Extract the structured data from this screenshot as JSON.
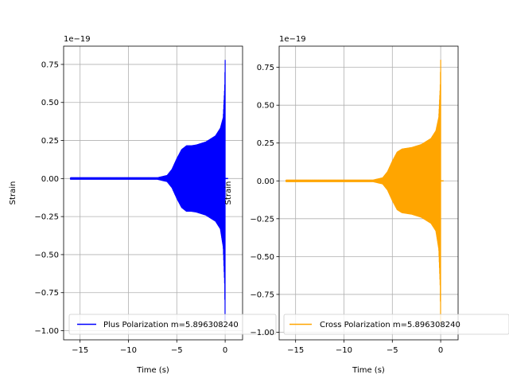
{
  "chart_data": [
    {
      "type": "line",
      "xlabel": "Time (s)",
      "ylabel": "Strain",
      "offset_text": "1e−19",
      "y_scale_exponent": -19,
      "xlim": [
        -16.7,
        1.8
      ],
      "ylim": [
        -1.06,
        0.87
      ],
      "xticks": [
        -15,
        -10,
        -5,
        0
      ],
      "xtick_labels": [
        "−15",
        "−10",
        "−5",
        "0"
      ],
      "yticks": [
        -1.0,
        -0.75,
        -0.5,
        -0.25,
        0.0,
        0.25,
        0.5,
        0.75
      ],
      "ytick_labels": [
        "−1.00",
        "−0.75",
        "−0.50",
        "−0.25",
        "0.00",
        "0.25",
        "0.50",
        "0.75"
      ],
      "grid": true,
      "legend_position": "lower-left",
      "series": [
        {
          "name": "Plus Polarization m=5.896308240",
          "color": "#0000ff",
          "envelope": {
            "x": [
              -16.0,
              -7.0,
              -6.0,
              -5.5,
              -5.0,
              -4.5,
              -4.0,
              -3.5,
              -3.0,
              -2.0,
              -1.0,
              -0.5,
              -0.2,
              -0.05,
              0.0
            ],
            "upper": [
              0.005,
              0.005,
              0.02,
              0.06,
              0.13,
              0.19,
              0.215,
              0.215,
              0.22,
              0.24,
              0.28,
              0.33,
              0.4,
              0.6,
              0.78
            ],
            "lower": [
              -0.005,
              -0.005,
              -0.02,
              -0.06,
              -0.13,
              -0.19,
              -0.215,
              -0.215,
              -0.22,
              -0.24,
              -0.28,
              -0.33,
              -0.45,
              -0.7,
              -1.0
            ]
          }
        }
      ]
    },
    {
      "type": "line",
      "xlabel": "Time (s)",
      "ylabel": "Strain",
      "offset_text": "1e−19",
      "y_scale_exponent": -19,
      "xlim": [
        -16.7,
        1.8
      ],
      "ylim": [
        -1.05,
        0.89
      ],
      "xticks": [
        -15,
        -10,
        -5,
        0
      ],
      "xtick_labels": [
        "−15",
        "−10",
        "−5",
        "0"
      ],
      "yticks": [
        -1.0,
        -0.75,
        -0.5,
        -0.25,
        0.0,
        0.25,
        0.5,
        0.75
      ],
      "ytick_labels": [
        "−1.00",
        "−0.75",
        "−0.50",
        "−0.25",
        "0.00",
        "0.25",
        "0.50",
        "0.75"
      ],
      "grid": true,
      "legend_position": "lower-left",
      "series": [
        {
          "name": "Cross Polarization m=5.896308240",
          "color": "#ffa500",
          "envelope": {
            "x": [
              -16.0,
              -7.0,
              -6.0,
              -5.5,
              -5.0,
              -4.5,
              -4.0,
              -3.5,
              -3.0,
              -2.0,
              -1.0,
              -0.5,
              -0.2,
              -0.05,
              0.0
            ],
            "upper": [
              0.005,
              0.005,
              0.02,
              0.06,
              0.13,
              0.19,
              0.21,
              0.215,
              0.22,
              0.24,
              0.28,
              0.33,
              0.42,
              0.62,
              0.8
            ],
            "lower": [
              -0.005,
              -0.005,
              -0.02,
              -0.06,
              -0.13,
              -0.19,
              -0.21,
              -0.215,
              -0.22,
              -0.24,
              -0.28,
              -0.33,
              -0.45,
              -0.7,
              -1.0
            ]
          }
        }
      ]
    }
  ]
}
